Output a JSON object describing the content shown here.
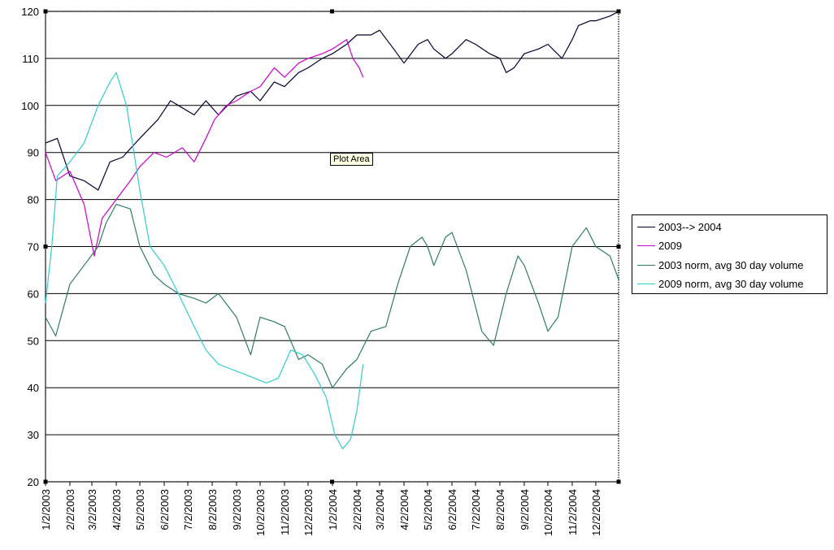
{
  "chart_data": {
    "type": "line",
    "title": "",
    "xlabel": "",
    "ylabel": "",
    "ylim": [
      20,
      120
    ],
    "yticks": [
      20,
      30,
      40,
      50,
      60,
      70,
      80,
      90,
      100,
      110,
      120
    ],
    "xlim": [
      "1/2/2003",
      "12/31/2004"
    ],
    "xtick_labels": [
      "1/2/2003",
      "2/2/2003",
      "3/2/2003",
      "4/2/2003",
      "5/2/2003",
      "6/2/2003",
      "7/2/2003",
      "8/2/2003",
      "9/2/2003",
      "10/2/2003",
      "11/2/2003",
      "12/2/2003",
      "1/2/2004",
      "2/2/2004",
      "3/2/2004",
      "4/2/2004",
      "5/2/2004",
      "6/2/2004",
      "7/2/2004",
      "8/2/2004",
      "9/2/2004",
      "10/2/2004",
      "11/2/2004",
      "12/2/2004"
    ],
    "grid": "horizontal",
    "legend_position": "right",
    "tooltip": "Plot Area",
    "series": [
      {
        "name": "2003--> 2004",
        "color": "#000033",
        "x": [
          "1/2/2003",
          "1/17/2003",
          "2/2/2003",
          "2/20/2003",
          "3/10/2003",
          "3/25/2003",
          "4/10/2003",
          "5/2/2003",
          "5/25/2003",
          "6/10/2003",
          "6/20/2003",
          "7/10/2003",
          "7/25/2003",
          "8/10/2003",
          "9/2/2003",
          "9/20/2003",
          "10/2/2003",
          "10/20/2003",
          "11/2/2003",
          "11/20/2003",
          "12/2/2003",
          "12/20/2003",
          "1/2/2004",
          "1/20/2004",
          "2/2/2004",
          "2/20/2004",
          "3/2/2004",
          "3/20/2004",
          "4/2/2004",
          "4/20/2004",
          "5/2/2004",
          "5/10/2004",
          "5/25/2004",
          "6/2/2004",
          "6/20/2004",
          "7/2/2004",
          "7/20/2004",
          "8/2/2004",
          "8/10/2004",
          "8/20/2004",
          "9/2/2004",
          "9/20/2004",
          "10/2/2004",
          "10/20/2004",
          "11/2/2004",
          "11/10/2004",
          "11/25/2004",
          "12/2/2004",
          "12/20/2004",
          "12/31/2004"
        ],
        "values": [
          92,
          93,
          85,
          84,
          82,
          88,
          89,
          93,
          97,
          101,
          100,
          98,
          101,
          98,
          102,
          103,
          101,
          105,
          104,
          107,
          108,
          110,
          111,
          113,
          115,
          115,
          116,
          112,
          109,
          113,
          114,
          112,
          110,
          111,
          114,
          113,
          111,
          110,
          107,
          108,
          111,
          112,
          113,
          110,
          114,
          117,
          118,
          118,
          119,
          120
        ]
      },
      {
        "name": "2009",
        "color": "#cc00cc",
        "x": [
          "1/2/2003",
          "1/15/2003",
          "2/2/2003",
          "2/20/2003",
          "3/5/2003",
          "3/15/2003",
          "4/2/2003",
          "4/20/2003",
          "5/2/2003",
          "5/20/2003",
          "6/5/2003",
          "6/25/2003",
          "7/10/2003",
          "7/25/2003",
          "8/5/2003",
          "8/20/2003",
          "9/2/2003",
          "9/20/2003",
          "10/2/2003",
          "10/20/2003",
          "11/2/2003",
          "11/20/2003",
          "12/2/2003",
          "12/20/2003",
          "1/2/2004",
          "1/20/2004",
          "1/28/2004",
          "2/5/2004",
          "2/10/2004"
        ],
        "values": [
          90,
          84,
          86,
          79,
          68,
          76,
          80,
          84,
          87,
          90,
          89,
          91,
          88,
          93,
          97,
          100,
          101,
          103,
          104,
          108,
          106,
          109,
          110,
          111,
          112,
          114,
          110,
          108,
          106
        ]
      },
      {
        "name": "2003 norm, avg 30 day volume",
        "color": "#2e7d62",
        "x": [
          "1/2/2003",
          "1/15/2003",
          "2/2/2003",
          "2/20/2003",
          "3/10/2003",
          "3/20/2003",
          "4/2/2003",
          "4/20/2003",
          "5/2/2003",
          "5/20/2003",
          "6/2/2003",
          "6/20/2003",
          "7/10/2003",
          "7/25/2003",
          "8/10/2003",
          "9/2/2003",
          "9/20/2003",
          "10/2/2003",
          "10/20/2003",
          "11/2/2003",
          "11/20/2003",
          "12/2/2003",
          "12/20/2003",
          "1/2/2004",
          "1/20/2004",
          "2/2/2004",
          "2/20/2004",
          "3/10/2004",
          "3/25/2004",
          "4/10/2004",
          "4/25/2004",
          "5/2/2004",
          "5/10/2004",
          "5/25/2004",
          "6/2/2004",
          "6/20/2004",
          "7/10/2004",
          "7/25/2004",
          "8/10/2004",
          "8/25/2004",
          "9/2/2004",
          "9/20/2004",
          "10/2/2004",
          "10/15/2004",
          "11/2/2004",
          "11/20/2004",
          "12/2/2004",
          "12/20/2004",
          "12/31/2004"
        ],
        "values": [
          55,
          51,
          62,
          66,
          70,
          75,
          79,
          78,
          70,
          64,
          62,
          60,
          59,
          58,
          60,
          55,
          47,
          55,
          54,
          53,
          46,
          47,
          45,
          40,
          44,
          46,
          52,
          53,
          62,
          70,
          72,
          70,
          66,
          72,
          73,
          65,
          52,
          49,
          60,
          68,
          66,
          58,
          52,
          55,
          70,
          74,
          70,
          68,
          63
        ]
      },
      {
        "name": "2009 norm, avg 30 day volume",
        "color": "#33cccc",
        "x": [
          "1/2/2003",
          "1/10/2003",
          "1/17/2003",
          "2/2/2003",
          "2/20/2003",
          "3/10/2003",
          "3/25/2003",
          "4/2/2003",
          "4/15/2003",
          "5/2/2003",
          "5/15/2003",
          "6/2/2003",
          "6/20/2003",
          "7/10/2003",
          "7/25/2003",
          "8/10/2003",
          "8/25/2003",
          "9/10/2003",
          "9/25/2003",
          "10/10/2003",
          "10/25/2003",
          "11/10/2003",
          "11/25/2003",
          "12/10/2003",
          "12/25/2003",
          "1/5/2004",
          "1/15/2004",
          "1/25/2004",
          "2/2/2004",
          "2/10/2004"
        ],
        "values": [
          58,
          70,
          85,
          88,
          92,
          100,
          105,
          107,
          100,
          82,
          70,
          66,
          60,
          53,
          48,
          45,
          44,
          43,
          42,
          41,
          42,
          48,
          47,
          43,
          38,
          30,
          27,
          29,
          35,
          45
        ]
      }
    ]
  }
}
